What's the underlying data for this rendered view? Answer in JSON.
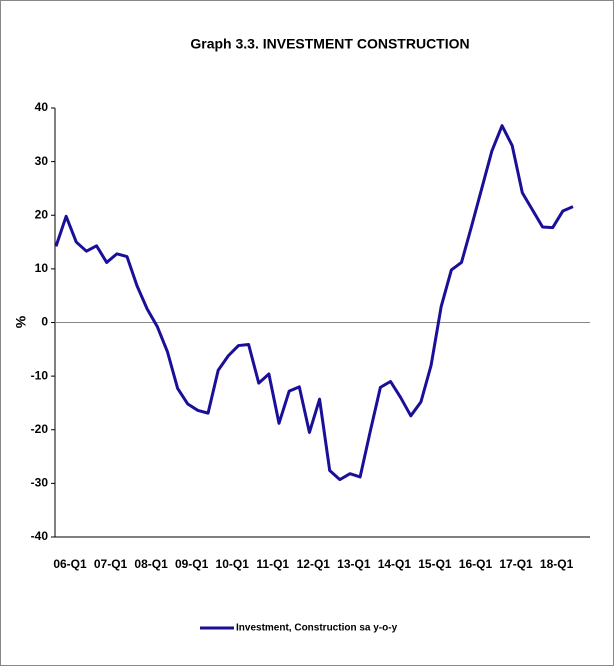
{
  "chart_data": {
    "type": "line",
    "title": "Graph 3.3. INVESTMENT CONSTRUCTION",
    "y_label": "%",
    "categories": [
      "06-Q1",
      null,
      null,
      null,
      "07-Q1",
      null,
      null,
      null,
      "08-Q1",
      null,
      null,
      null,
      "09-Q1",
      null,
      null,
      null,
      "10-Q1",
      null,
      null,
      null,
      "11-Q1",
      null,
      null,
      null,
      "12-Q1",
      null,
      null,
      null,
      "13-Q1",
      null,
      null,
      null,
      "14-Q1",
      null,
      null,
      null,
      "15-Q1",
      null,
      null,
      null,
      "16-Q1",
      null,
      null,
      null,
      "17-Q1",
      null,
      null,
      null,
      "18-Q1",
      null,
      null,
      null
    ],
    "series": [
      {
        "name": "Investment, Construction sa y-o-y",
        "color": "#1a0f99",
        "values": [
          14.2,
          19.8,
          15,
          13.3,
          14.3,
          11.2,
          12.8,
          12.3,
          6.8,
          2.5,
          -0.8,
          -5.5,
          -12.3,
          -15.2,
          -16.4,
          -16.9,
          -8.9,
          -6.2,
          -4.3,
          -4.1,
          -11.3,
          -9.6,
          -18.8,
          -12.8,
          -12,
          -20.5,
          -14.3,
          -27.6,
          -29.3,
          -28.2,
          -28.8,
          -20.3,
          -12.1,
          -11,
          -14,
          -17.4,
          -14.8,
          -8,
          3,
          9.8,
          11.2,
          18,
          25,
          32,
          36.7,
          33,
          24.2,
          21,
          17.8,
          17.7,
          20.8,
          21.6
        ]
      }
    ],
    "ylim": [
      -40,
      40
    ],
    "yticks": [
      -40,
      -30,
      -20,
      -10,
      0,
      10,
      20,
      30,
      40
    ],
    "legend": "bottom"
  }
}
